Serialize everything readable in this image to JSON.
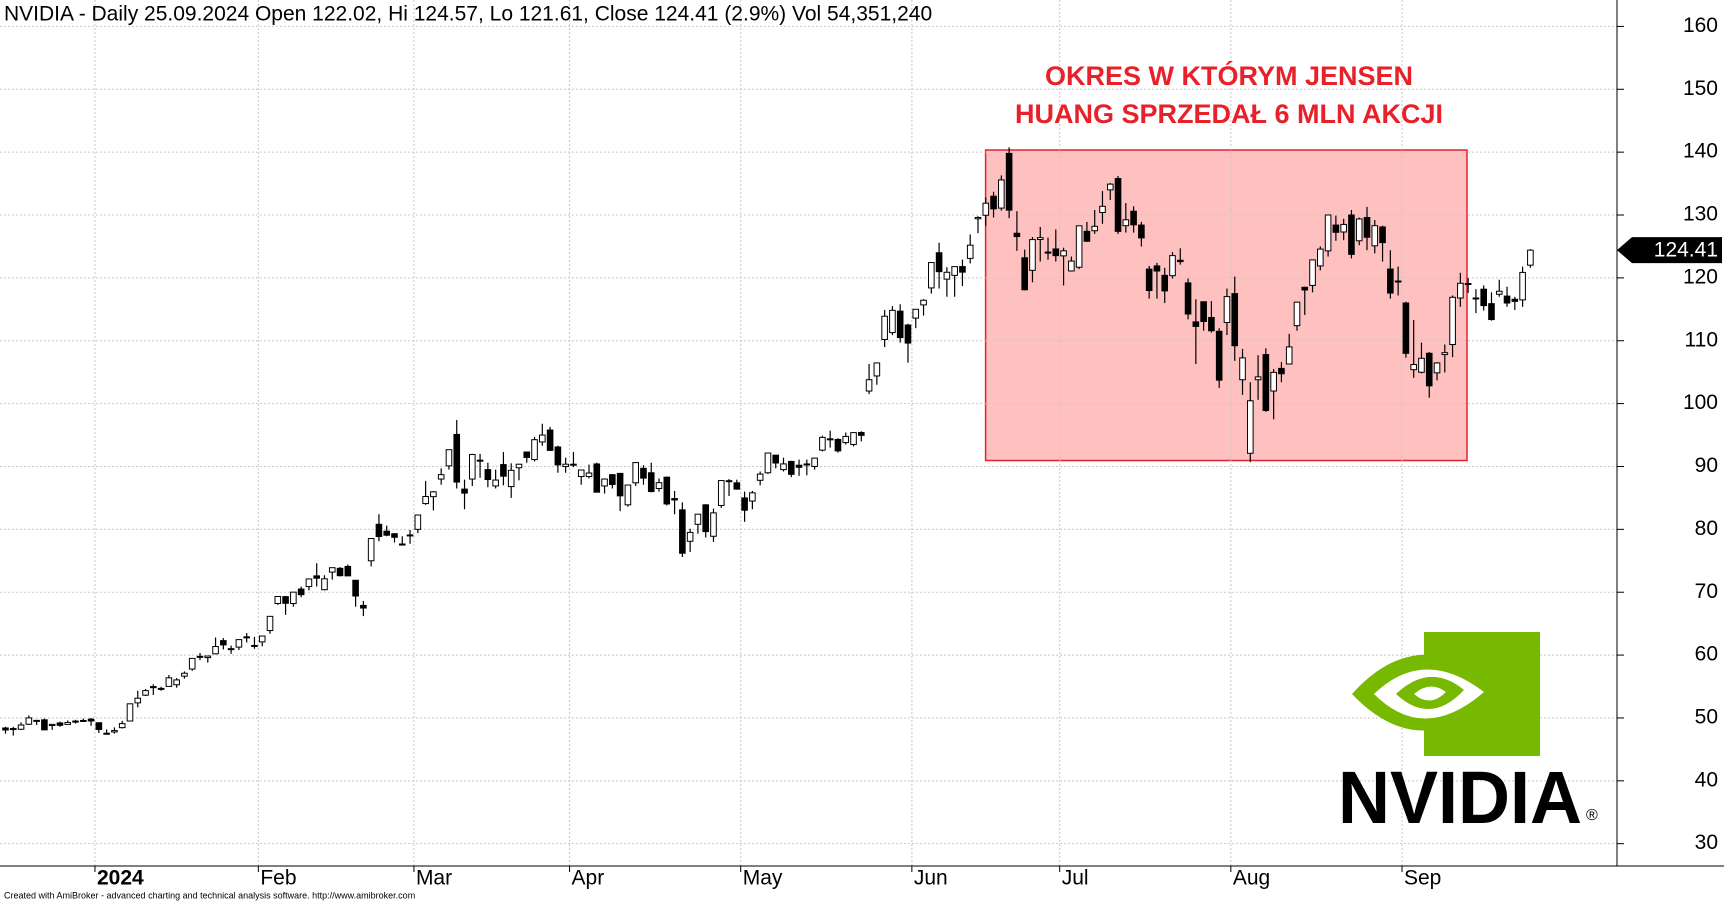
{
  "chart_data": {
    "type": "candlestick",
    "title": "NVIDIA - Daily 25.09.2024 Open 122.02, Hi 124.57, Lo 121.61, Close 124.41 (2.9%) Vol 54,351,240",
    "annotation": [
      "OKRES W KTÓRYM JENSEN",
      "HUANG SPRZEDAŁ 6 MLN AKCJI"
    ],
    "categories": [
      null,
      null,
      null,
      null,
      null,
      null,
      null,
      null,
      null,
      null,
      null,
      null,
      "2024",
      null,
      null,
      null,
      null,
      null,
      null,
      null,
      null,
      null,
      null,
      null,
      null,
      null,
      null,
      null,
      null,
      null,
      null,
      null,
      null,
      "Feb",
      null,
      null,
      null,
      null,
      null,
      null,
      null,
      null,
      null,
      null,
      null,
      null,
      null,
      null,
      null,
      null,
      null,
      null,
      null,
      "Mar",
      null,
      null,
      null,
      null,
      null,
      null,
      null,
      null,
      null,
      null,
      null,
      null,
      null,
      null,
      null,
      null,
      null,
      null,
      null,
      "Apr",
      null,
      null,
      null,
      null,
      null,
      null,
      null,
      null,
      null,
      null,
      null,
      null,
      null,
      null,
      null,
      null,
      null,
      null,
      null,
      null,
      null,
      "May",
      null,
      null,
      null,
      null,
      null,
      null,
      null,
      null,
      null,
      null,
      null,
      null,
      null,
      null,
      null,
      null,
      null,
      null,
      null,
      null,
      null,
      "Jun",
      null,
      null,
      null,
      null,
      null,
      null,
      null,
      null,
      null,
      null,
      null,
      null,
      null,
      null,
      null,
      null,
      null,
      null,
      "Jul",
      null,
      null,
      null,
      null,
      null,
      null,
      null,
      null,
      null,
      null,
      null,
      null,
      null,
      null,
      null,
      null,
      null,
      null,
      null,
      null,
      null,
      "Aug",
      null,
      null,
      null,
      null,
      null,
      null,
      null,
      null,
      null,
      null,
      null,
      null,
      null,
      null,
      null,
      null,
      null,
      null,
      null,
      null,
      null,
      "Sep",
      null,
      null,
      null,
      null,
      null,
      null,
      null,
      null,
      null,
      null,
      null,
      null,
      null,
      null,
      null,
      null
    ],
    "open": [
      48.4,
      48.3,
      48.2,
      49.0,
      49.6,
      49.7,
      48.8,
      49.2,
      48.97,
      49.5,
      49.6,
      49.8,
      49.24,
      47.49,
      47.77,
      48.46,
      49.51,
      52.4,
      53.62,
      54.99,
      54.62,
      55.02,
      55.28,
      56.65,
      57.78,
      59.8,
      59.6,
      60.2,
      62.3,
      60.9,
      61.27,
      62.9,
      61.5,
      62.1,
      63.9,
      68.2,
      69.3,
      68.2,
      70.5,
      70.9,
      72.6,
      70.4,
      73.2,
      73.8,
      74.1,
      71.9,
      67.9,
      75.0,
      80.8,
      79.7,
      79.3,
      77.6,
      79.1,
      80.0,
      84.1,
      85.2,
      88.0,
      90.1,
      95.1,
      86.4,
      88.0,
      91.0,
      89.5,
      86.9,
      90.3,
      86.8,
      89.8,
      92.3,
      91.1,
      93.9,
      95.8,
      93.1,
      90.0,
      90.3,
      88.4,
      88.4,
      90.4,
      86.9,
      88.7,
      88.9,
      83.9,
      87.4,
      89.7,
      89.0,
      86.5,
      88.3,
      84.9,
      83.1,
      78.1,
      80.8,
      83.9,
      78.9,
      83.8,
      87.6,
      87.4,
      85.0,
      84.5,
      87.8,
      89.0,
      91.8,
      89.5,
      90.8,
      90.2,
      90.4,
      90.0,
      92.6,
      94.4,
      94.3,
      93.8,
      93.5,
      95.4,
      102.0,
      104.4,
      110.2,
      111.3,
      114.7,
      112.5,
      113.6,
      115.7,
      118.4,
      124.0,
      119.8,
      120.4,
      121.8,
      123.1,
      129.4,
      129.96,
      132.99,
      131.1,
      139.8,
      127.1,
      123.2,
      121.2,
      126.1,
      124.1,
      124.6,
      123.5,
      121.1,
      121.7,
      127.4,
      127.5,
      130.4,
      134.0,
      135.8,
      128.3,
      130.6,
      128.4,
      121.4,
      121.9,
      120.4,
      120.35,
      122.8,
      119.2,
      113.0,
      116.2,
      113.7,
      111.5,
      112.9,
      117.5,
      103.8,
      92.1,
      103.8,
      107.8,
      102.0,
      105.6,
      106.3,
      112.4,
      118.5,
      118.8,
      121.9,
      124.3,
      128.4,
      127.3,
      130.0,
      125.9,
      129.6,
      125.1,
      128.1,
      121.4,
      119.5,
      116.0,
      105.4,
      104.99,
      108.0,
      104.9,
      107.8,
      109.4,
      116.8,
      119.1,
      116.8,
      118.2,
      115.9,
      117.4,
      117.1,
      116.6,
      116.5,
      122.02
    ],
    "high": [
      48.6,
      48.6,
      49.3,
      50.4,
      49.7,
      49.9,
      49.0,
      49.4,
      49.6,
      49.7,
      49.9,
      49.99,
      49.3,
      48.18,
      48.5,
      49.55,
      52.27,
      54.33,
      54.6,
      55.35,
      54.97,
      56.83,
      56.34,
      57.4,
      59.5,
      60.33,
      59.87,
      62.8,
      62.7,
      61.5,
      62.48,
      63.5,
      62.9,
      63.0,
      66.2,
      69.4,
      69.4,
      70.0,
      70.9,
      72.1,
      74.6,
      72.7,
      73.9,
      74.0,
      74.4,
      71.9,
      68.6,
      78.5,
      82.4,
      80.6,
      79.4,
      78.9,
      79.9,
      82.3,
      87.7,
      86.1,
      89.7,
      92.7,
      97.4,
      87.9,
      92.0,
      92.0,
      90.6,
      89.5,
      92.3,
      90.5,
      90.4,
      92.3,
      94.7,
      96.8,
      96.3,
      93.3,
      91.4,
      92.3,
      89.4,
      90.3,
      90.6,
      88.1,
      88.8,
      88.9,
      87.1,
      90.7,
      90.2,
      90.6,
      88.1,
      88.4,
      86.1,
      84.3,
      80.1,
      82.4,
      84.0,
      83.3,
      87.8,
      88.0,
      87.9,
      86.0,
      86.1,
      89.2,
      92.2,
      91.8,
      91.4,
      90.9,
      91.1,
      91.1,
      91.4,
      94.9,
      95.7,
      94.5,
      95.4,
      95.4,
      95.6,
      106.3,
      106.5,
      114.9,
      115.5,
      115.8,
      112.7,
      115.0,
      116.6,
      122.4,
      125.6,
      121.7,
      121.8,
      122.9,
      126.9,
      129.8,
      132.8,
      133.7,
      136.3,
      140.76,
      130.6,
      124.5,
      126.5,
      128.1,
      126.4,
      127.7,
      124.8,
      123.4,
      128.3,
      128.9,
      130.8,
      133.8,
      135.1,
      136.2,
      131.9,
      131.4,
      128.9,
      121.9,
      122.4,
      121.6,
      124.1,
      124.7,
      119.9,
      116.6,
      116.2,
      116.3,
      111.99,
      118.3,
      120.2,
      108.7,
      103.4,
      107.7,
      108.8,
      105.5,
      106.6,
      111.1,
      116.2,
      118.6,
      122.9,
      125.0,
      130.0,
      129.9,
      129.4,
      130.8,
      129.6,
      131.3,
      129.2,
      128.3,
      124.4,
      121.8,
      116.2,
      113.3,
      109.7,
      108.2,
      106.6,
      109.4,
      117.2,
      120.8,
      119.96,
      118.2,
      118.8,
      117.7,
      119.7,
      118.6,
      116.99,
      121.8,
      124.57
    ],
    "low": [
      47.5,
      47.2,
      48.1,
      48.9,
      48.9,
      48.1,
      48.1,
      48.6,
      48.96,
      49.1,
      49.4,
      48.75,
      47.6,
      47.32,
      47.51,
      48.31,
      49.48,
      51.69,
      53.49,
      53.65,
      54.33,
      54.99,
      54.82,
      56.25,
      57.5,
      59.2,
      58.8,
      60.1,
      60.9,
      60.2,
      60.8,
      62.0,
      61.0,
      61.4,
      63.4,
      68.0,
      66.4,
      67.7,
      69.2,
      70.3,
      70.9,
      70.3,
      72.0,
      72.5,
      72.6,
      67.7,
      66.2,
      74.1,
      78.1,
      78.9,
      77.9,
      77.4,
      77.7,
      79.4,
      83.9,
      83.0,
      87.1,
      89.5,
      86.5,
      83.2,
      86.9,
      88.2,
      86.7,
      86.5,
      87.0,
      85.0,
      87.8,
      90.6,
      90.8,
      93.3,
      92.5,
      89.0,
      89.0,
      89.9,
      87.1,
      88.1,
      85.9,
      85.7,
      86.5,
      82.9,
      83.6,
      86.9,
      87.1,
      85.9,
      86.0,
      83.8,
      82.4,
      75.6,
      76.4,
      79.3,
      78.7,
      78.0,
      83.4,
      85.3,
      86.3,
      81.2,
      83.2,
      87.0,
      88.8,
      89.7,
      89.2,
      88.3,
      88.5,
      88.6,
      89.5,
      92.4,
      93.0,
      92.2,
      93.5,
      93.2,
      94.0,
      101.5,
      103.0,
      109.0,
      110.9,
      109.7,
      106.5,
      112.0,
      114.0,
      117.5,
      118.3,
      117.0,
      117.0,
      118.7,
      122.3,
      127.1,
      128.3,
      129.6,
      130.7,
      129.5,
      124.3,
      118.0,
      119.3,
      122.6,
      122.9,
      122.6,
      118.8,
      121.0,
      121.4,
      125.7,
      127.0,
      128.6,
      132.4,
      127.0,
      127.2,
      127.2,
      125.0,
      116.7,
      116.7,
      116.0,
      119.9,
      122.1,
      113.4,
      106.3,
      111.6,
      111.3,
      102.5,
      110.9,
      106.8,
      101.4,
      90.69,
      100.6,
      98.7,
      97.5,
      103.4,
      106.3,
      111.6,
      114.1,
      117.7,
      121.2,
      123.4,
      125.9,
      126.0,
      123.1,
      125.2,
      124.4,
      123.9,
      122.6,
      116.7,
      117.2,
      107.3,
      104.1,
      104.8,
      100.95,
      103.7,
      104.95,
      107.4,
      115.4,
      117.6,
      114.4,
      114.8,
      113.2,
      117.0,
      115.4,
      114.9,
      115.4,
      121.61
    ],
    "close": [
      48.09,
      48.31,
      48.88,
      50.01,
      49.61,
      48.11,
      48.98,
      48.83,
      49.28,
      49.42,
      49.53,
      49.52,
      48.17,
      47.57,
      47.99,
      49.1,
      52.25,
      53.14,
      54.35,
      54.82,
      54.7,
      56.38,
      56.05,
      57.11,
      59.47,
      59.65,
      59.85,
      61.36,
      61.62,
      61.02,
      62.46,
      62.77,
      61.53,
      63.03,
      66.16,
      69.32,
      68.24,
      70.01,
      69.61,
      72.11,
      72.23,
      72.13,
      73.9,
      72.63,
      72.6,
      69.4,
      67.48,
      78.54,
      78.86,
      79.07,
      78.74,
      77.67,
      79.11,
      82.28,
      85.22,
      85.97,
      88.7,
      92.67,
      87.52,
      85.76,
      91.91,
      90.87,
      87.93,
      87.84,
      88.45,
      89.39,
      90.36,
      91.44,
      94.26,
      95.0,
      92.56,
      90.25,
      90.36,
      90.36,
      89.44,
      88.96,
      85.91,
      88.0,
      87.14,
      85.33,
      87.05,
      90.62,
      88.15,
      86.01,
      87.42,
      84.04,
      84.67,
      76.2,
      79.51,
      82.41,
      79.64,
      82.62,
      87.76,
      87.74,
      86.4,
      83.04,
      85.81,
      88.79,
      92.14,
      90.55,
      90.41,
      88.75,
      89.87,
      90.4,
      91.33,
      94.63,
      94.36,
      92.48,
      94.78,
      95.39,
      94.95,
      103.8,
      106.47,
      113.9,
      114.83,
      110.5,
      109.63,
      115.0,
      116.44,
      122.44,
      120.99,
      120.89,
      121.79,
      120.91,
      125.2,
      129.61,
      131.88,
      130.98,
      135.58,
      130.78,
      126.57,
      118.11,
      126.09,
      126.4,
      123.99,
      123.54,
      124.3,
      122.67,
      128.28,
      125.83,
      128.2,
      131.38,
      134.91,
      127.4,
      129.24,
      128.44,
      126.36,
      117.99,
      121.09,
      117.93,
      123.54,
      122.59,
      114.25,
      112.28,
      113.06,
      111.59,
      103.73,
      117.02,
      109.21,
      107.27,
      100.45,
      104.25,
      98.91,
      104.97,
      104.75,
      109.02,
      116.14,
      118.08,
      122.86,
      124.58,
      130.0,
      127.25,
      128.5,
      123.74,
      129.37,
      126.46,
      128.3,
      125.61,
      117.59,
      119.37,
      108.0,
      106.21,
      107.21,
      102.83,
      106.47,
      108.1,
      116.91,
      119.14,
      119.1,
      116.78,
      115.59,
      113.37,
      117.87,
      116.0,
      116.26,
      120.87,
      124.41
    ],
    "up_color": "#ffffff",
    "down_color": "#000000",
    "ylim": [
      26.45,
      164.2
    ],
    "yticks": [
      30,
      40,
      50,
      60,
      70,
      80,
      90,
      100,
      110,
      120,
      130,
      140,
      150,
      160
    ],
    "grid": true
  },
  "footer": "Created with AmiBroker - advanced charting and technical analysis software. http://www.amibroker.com",
  "logo": {
    "text": "NVIDIA",
    "mark": "®"
  }
}
